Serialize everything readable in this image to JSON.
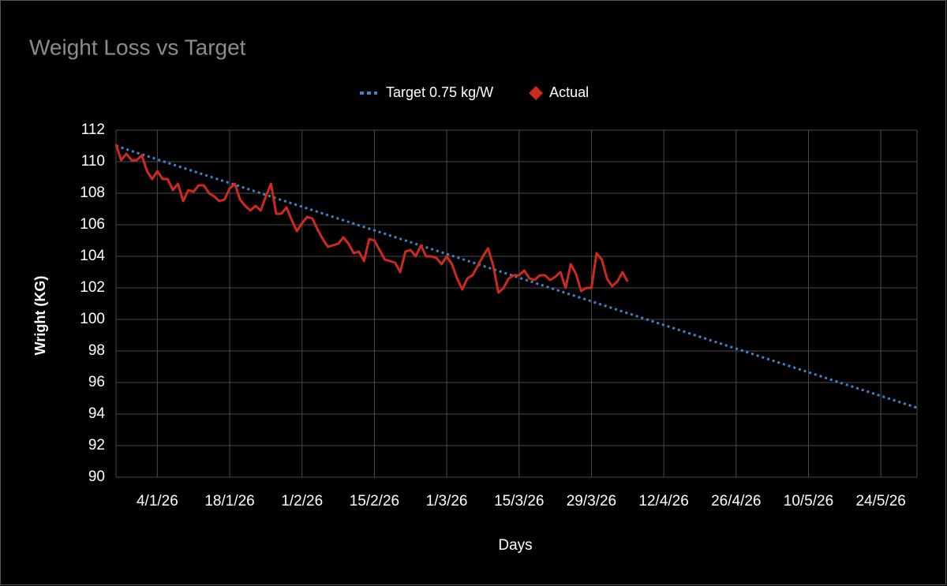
{
  "chart_data": {
    "type": "line",
    "title": "Weight Loss vs Target",
    "x_label": "Days",
    "y_label": "Wright (KG)",
    "legend": "top",
    "grid": true,
    "xlim": [
      "2025-12-27",
      "2026-05-31"
    ],
    "xticks": [
      {
        "value": "2026-01-04",
        "label": "4/1/26"
      },
      {
        "value": "2026-01-18",
        "label": "18/1/26"
      },
      {
        "value": "2026-02-01",
        "label": "1/2/26"
      },
      {
        "value": "2026-02-15",
        "label": "15/2/26"
      },
      {
        "value": "2026-03-01",
        "label": "1/3/26"
      },
      {
        "value": "2026-03-15",
        "label": "15/3/26"
      },
      {
        "value": "2026-03-29",
        "label": "29/3/26"
      },
      {
        "value": "2026-04-12",
        "label": "12/4/26"
      },
      {
        "value": "2026-04-26",
        "label": "26/4/26"
      },
      {
        "value": "2026-05-10",
        "label": "10/5/26"
      },
      {
        "value": "2026-05-24",
        "label": "24/5/26"
      }
    ],
    "ylim": [
      90,
      112
    ],
    "yticks": [
      90,
      92,
      94,
      96,
      98,
      100,
      102,
      104,
      106,
      108,
      110,
      112
    ],
    "series": [
      {
        "name": "Target 0.75 kg/W",
        "color": "#3d85c6",
        "style": "dotted",
        "x": [
          "2025-12-27",
          "2026-05-31"
        ],
        "values": [
          111,
          94.4
        ]
      },
      {
        "name": "Actual",
        "color": "#cc2a1e",
        "style": "solid",
        "marker": "diamond",
        "x": [
          "2025-12-27",
          "2025-12-28",
          "2025-12-29",
          "2025-12-30",
          "2025-12-31",
          "2026-01-01",
          "2026-01-02",
          "2026-01-03",
          "2026-01-04",
          "2026-01-05",
          "2026-01-06",
          "2026-01-07",
          "2026-01-08",
          "2026-01-09",
          "2026-01-10",
          "2026-01-11",
          "2026-01-12",
          "2026-01-13",
          "2026-01-14",
          "2026-01-15",
          "2026-01-16",
          "2026-01-17",
          "2026-01-18",
          "2026-01-19",
          "2026-01-20",
          "2026-01-21",
          "2026-01-22",
          "2026-01-23",
          "2026-01-24",
          "2026-01-25",
          "2026-01-26",
          "2026-01-27",
          "2026-01-28",
          "2026-01-29",
          "2026-01-30",
          "2026-01-31",
          "2026-02-01",
          "2026-02-02",
          "2026-02-03",
          "2026-02-04",
          "2026-02-05",
          "2026-02-06",
          "2026-02-07",
          "2026-02-08",
          "2026-02-09",
          "2026-02-10",
          "2026-02-11",
          "2026-02-12",
          "2026-02-13",
          "2026-02-14",
          "2026-02-15",
          "2026-02-16",
          "2026-02-17",
          "2026-02-18",
          "2026-02-19",
          "2026-02-20",
          "2026-02-21",
          "2026-02-22",
          "2026-02-23",
          "2026-02-24",
          "2026-02-25",
          "2026-02-26",
          "2026-02-27",
          "2026-02-28",
          "2026-03-01",
          "2026-03-02",
          "2026-03-03",
          "2026-03-04",
          "2026-03-05",
          "2026-03-06",
          "2026-03-07",
          "2026-03-08",
          "2026-03-09",
          "2026-03-10",
          "2026-03-11",
          "2026-03-12",
          "2026-03-13",
          "2026-03-14",
          "2026-03-15",
          "2026-03-16",
          "2026-03-17",
          "2026-03-18",
          "2026-03-19",
          "2026-03-20",
          "2026-03-21",
          "2026-03-22",
          "2026-03-23",
          "2026-03-24",
          "2026-03-25",
          "2026-03-26",
          "2026-03-27",
          "2026-03-28",
          "2026-03-29",
          "2026-03-30",
          "2026-03-31",
          "2026-04-01",
          "2026-04-02",
          "2026-04-03",
          "2026-04-04",
          "2026-04-05"
        ],
        "values": [
          111.1,
          110.1,
          110.5,
          110.1,
          110.1,
          110.4,
          109.4,
          108.9,
          109.4,
          108.9,
          108.9,
          108.2,
          108.6,
          107.5,
          108.2,
          108.1,
          108.5,
          108.5,
          108.0,
          107.8,
          107.5,
          107.6,
          108.3,
          108.6,
          107.6,
          107.2,
          106.9,
          107.2,
          106.9,
          107.8,
          108.6,
          106.7,
          106.7,
          107.1,
          106.3,
          105.6,
          106.1,
          106.5,
          106.4,
          105.7,
          105.1,
          104.6,
          104.7,
          104.8,
          105.2,
          104.8,
          104.2,
          104.3,
          103.7,
          105.1,
          105.0,
          104.4,
          103.8,
          103.7,
          103.6,
          103.0,
          104.3,
          104.4,
          104.0,
          104.7,
          104.0,
          104.0,
          103.9,
          103.5,
          104.0,
          103.5,
          102.6,
          101.9,
          102.6,
          102.8,
          103.4,
          104.0,
          104.5,
          103.4,
          101.7,
          102.0,
          102.6,
          102.8,
          102.8,
          103.1,
          102.6,
          102.5,
          102.8,
          102.8,
          102.5,
          102.7,
          103.0,
          102.0,
          103.5,
          102.9,
          101.8,
          102.0,
          102.0,
          104.2,
          103.8,
          102.6,
          102.1,
          102.4,
          103.0,
          102.4
        ]
      }
    ]
  }
}
